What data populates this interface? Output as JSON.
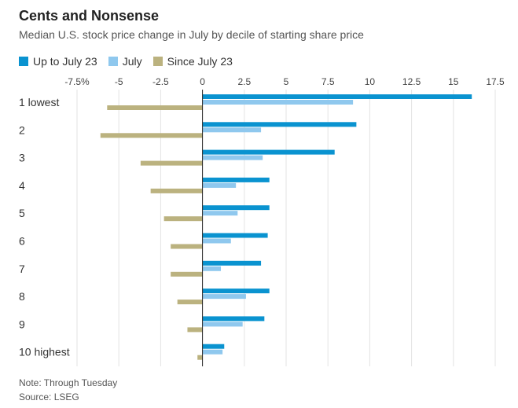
{
  "header": {
    "title": "Cents and Nonsense",
    "subtitle": "Median U.S. stock price change in July by decile of starting share price"
  },
  "footer": {
    "note": "Note: Through Tuesday",
    "source": "Source: LSEG"
  },
  "colors": {
    "up_to_july23": "#0a93d0",
    "july": "#8fc8ee",
    "since_july23": "#bbb27f",
    "grid": "#e3e3e3",
    "axis": "#222222"
  },
  "chart_data": {
    "type": "bar",
    "orientation": "horizontal",
    "title": "Cents and Nonsense",
    "subtitle": "Median U.S. stock price change in July by decile of starting share price",
    "xlim": [
      -7.5,
      17.5
    ],
    "x_ticks": [
      -7.5,
      -5,
      -2.5,
      0,
      2.5,
      5,
      7.5,
      10,
      12.5,
      15,
      17.5
    ],
    "x_tick_labels": [
      "-7.5%",
      "-5",
      "-2.5",
      "0",
      "2.5",
      "5",
      "7.5",
      "10",
      "12.5",
      "15",
      "17.5"
    ],
    "grid": true,
    "legend_position": "top-left",
    "categories": [
      "1 lowest",
      "2",
      "3",
      "4",
      "5",
      "6",
      "7",
      "8",
      "9",
      "10 highest"
    ],
    "series": [
      {
        "name": "Up to July 23",
        "values": [
          16.1,
          9.2,
          7.9,
          4.0,
          4.0,
          3.9,
          3.5,
          4.0,
          3.7,
          1.3
        ]
      },
      {
        "name": "July",
        "values": [
          9.0,
          3.5,
          3.6,
          2.0,
          2.1,
          1.7,
          1.1,
          2.6,
          2.4,
          1.2
        ]
      },
      {
        "name": "Since July 23",
        "values": [
          -5.7,
          -6.1,
          -3.7,
          -3.1,
          -2.3,
          -1.9,
          -1.9,
          -1.5,
          -0.9,
          -0.3
        ]
      }
    ]
  }
}
